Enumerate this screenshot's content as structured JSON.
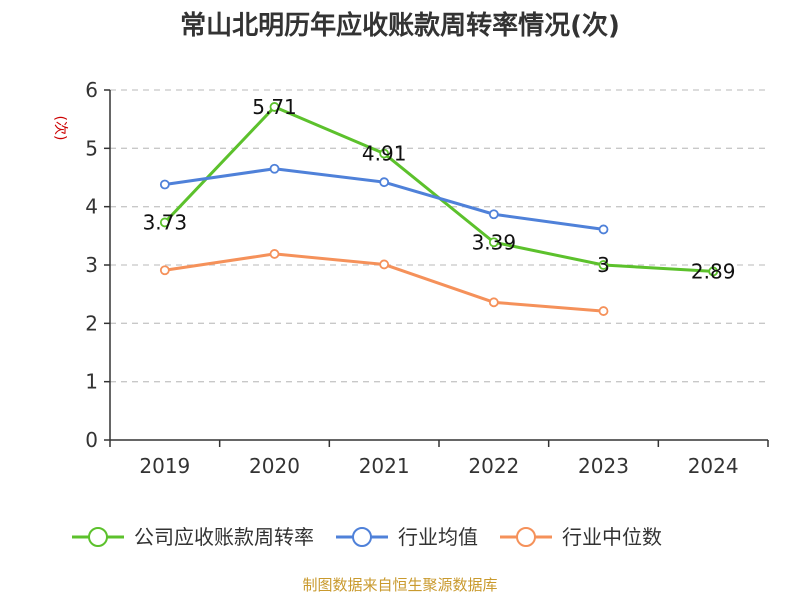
{
  "chart_data": {
    "type": "line",
    "title": "常山北明历年应收账款周转率情况(次)",
    "xlabel": "",
    "ylabel": "(次)",
    "categories": [
      "2019",
      "2020",
      "2021",
      "2022",
      "2023",
      "2024"
    ],
    "ylim": [
      0,
      6
    ],
    "yticks": [
      0,
      1,
      2,
      3,
      4,
      5,
      6
    ],
    "grid": true,
    "legend": "bottom",
    "series": [
      {
        "name": "公司应收账款周转率",
        "color": "#5cc12c",
        "values": [
          3.73,
          5.71,
          4.91,
          3.39,
          3,
          2.89
        ],
        "labels": [
          "3.73",
          "5.71",
          "4.91",
          "3.39",
          "3",
          "2.89"
        ]
      },
      {
        "name": "行业均值",
        "color": "#4f81d9",
        "values": [
          4.38,
          4.65,
          4.42,
          3.87,
          3.61,
          null
        ],
        "labels": []
      },
      {
        "name": "行业中位数",
        "color": "#f5915a",
        "values": [
          2.91,
          3.19,
          3.01,
          2.36,
          2.21,
          null
        ],
        "labels": []
      }
    ],
    "source": "制图数据来自恒生聚源数据库",
    "colors": {
      "axis": "#333333",
      "grid": "#c8c8c8",
      "ylabel": "#cc0000",
      "source": "#c99a2e"
    }
  }
}
